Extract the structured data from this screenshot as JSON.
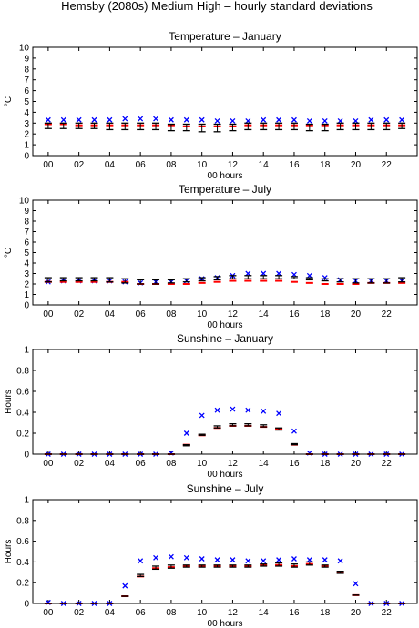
{
  "figure_title": "Hemsby (2080s) Medium High – hourly standard deviations",
  "colors": {
    "observed": "#0000ff",
    "model_mean": "#ff0000",
    "model_range": "#000000"
  },
  "chart_data": [
    {
      "type": "scatter",
      "title": "Temperature – January",
      "xlabel": "00 hours",
      "ylabel": "°C",
      "ylim": [
        0,
        10
      ],
      "yticks": [
        0,
        1,
        2,
        3,
        4,
        5,
        6,
        7,
        8,
        9,
        10
      ],
      "xticks": [
        "00",
        "02",
        "04",
        "06",
        "08",
        "10",
        "12",
        "14",
        "16",
        "18",
        "20",
        "22"
      ],
      "hours": [
        0,
        1,
        2,
        3,
        4,
        5,
        6,
        7,
        8,
        9,
        10,
        11,
        12,
        13,
        14,
        15,
        16,
        17,
        18,
        19,
        20,
        21,
        22,
        23
      ],
      "series": [
        {
          "marker": "x",
          "values": [
            3.3,
            3.3,
            3.3,
            3.3,
            3.3,
            3.4,
            3.4,
            3.4,
            3.3,
            3.3,
            3.3,
            3.2,
            3.2,
            3.2,
            3.3,
            3.3,
            3.3,
            3.2,
            3.2,
            3.2,
            3.2,
            3.3,
            3.3,
            3.3
          ]
        },
        {
          "marker": "dash",
          "values": [
            2.9,
            2.9,
            2.8,
            2.8,
            2.8,
            2.8,
            2.8,
            2.8,
            2.8,
            2.7,
            2.7,
            2.7,
            2.7,
            2.8,
            2.8,
            2.8,
            2.8,
            2.8,
            2.8,
            2.8,
            2.8,
            2.8,
            2.8,
            2.8
          ]
        },
        {
          "marker": "errorbar",
          "low": [
            2.5,
            2.5,
            2.5,
            2.5,
            2.4,
            2.4,
            2.4,
            2.4,
            2.3,
            2.3,
            2.2,
            2.2,
            2.3,
            2.4,
            2.4,
            2.4,
            2.4,
            2.3,
            2.3,
            2.4,
            2.4,
            2.4,
            2.4,
            2.5
          ],
          "high": [
            3.0,
            3.0,
            3.0,
            3.0,
            3.0,
            3.0,
            3.0,
            3.0,
            2.9,
            2.9,
            2.9,
            2.9,
            2.9,
            3.0,
            3.0,
            3.0,
            3.0,
            2.9,
            2.9,
            3.0,
            3.0,
            3.0,
            3.0,
            3.0
          ]
        }
      ]
    },
    {
      "type": "scatter",
      "title": "Temperature – July",
      "xlabel": "00 hours",
      "ylabel": "°C",
      "ylim": [
        0,
        10
      ],
      "yticks": [
        0,
        1,
        2,
        3,
        4,
        5,
        6,
        7,
        8,
        9,
        10
      ],
      "xticks": [
        "00",
        "02",
        "04",
        "06",
        "08",
        "10",
        "12",
        "14",
        "16",
        "18",
        "20",
        "22"
      ],
      "hours": [
        0,
        1,
        2,
        3,
        4,
        5,
        6,
        7,
        8,
        9,
        10,
        11,
        12,
        13,
        14,
        15,
        16,
        17,
        18,
        19,
        20,
        21,
        22,
        23
      ],
      "series": [
        {
          "marker": "x",
          "values": [
            2.2,
            2.3,
            2.3,
            2.3,
            2.3,
            2.2,
            2.1,
            2.2,
            2.2,
            2.3,
            2.5,
            2.6,
            2.8,
            3.0,
            3.0,
            3.0,
            2.9,
            2.8,
            2.6,
            2.4,
            2.3,
            2.3,
            2.3,
            2.3
          ]
        },
        {
          "marker": "dash",
          "values": [
            2.2,
            2.2,
            2.2,
            2.2,
            2.2,
            2.2,
            2.0,
            2.0,
            2.0,
            2.0,
            2.1,
            2.2,
            2.3,
            2.3,
            2.3,
            2.3,
            2.2,
            2.1,
            2.0,
            2.0,
            2.0,
            2.1,
            2.1,
            2.1
          ]
        },
        {
          "marker": "errorbar",
          "low": [
            2.2,
            2.3,
            2.3,
            2.3,
            2.2,
            2.1,
            2.0,
            2.0,
            2.1,
            2.2,
            2.3,
            2.4,
            2.5,
            2.5,
            2.5,
            2.5,
            2.5,
            2.4,
            2.3,
            2.2,
            2.1,
            2.1,
            2.1,
            2.2
          ],
          "high": [
            2.6,
            2.6,
            2.6,
            2.6,
            2.6,
            2.5,
            2.4,
            2.4,
            2.4,
            2.5,
            2.6,
            2.7,
            2.8,
            2.8,
            2.8,
            2.8,
            2.7,
            2.6,
            2.5,
            2.5,
            2.5,
            2.5,
            2.5,
            2.6
          ]
        }
      ]
    },
    {
      "type": "scatter",
      "title": "Sunshine – January",
      "xlabel": "00 hours",
      "ylabel": "Hours",
      "ylim": [
        0,
        1
      ],
      "yticks": [
        0,
        0.2,
        0.4,
        0.6,
        0.8,
        1
      ],
      "xticks": [
        "00",
        "02",
        "04",
        "06",
        "08",
        "10",
        "12",
        "14",
        "16",
        "18",
        "20",
        "22"
      ],
      "hours": [
        0,
        1,
        2,
        3,
        4,
        5,
        6,
        7,
        8,
        9,
        10,
        11,
        12,
        13,
        14,
        15,
        16,
        17,
        18,
        19,
        20,
        21,
        22,
        23
      ],
      "series": [
        {
          "marker": "x",
          "values": [
            0,
            0,
            0,
            0,
            0,
            0,
            0,
            0,
            0.01,
            0.2,
            0.37,
            0.42,
            0.43,
            0.42,
            0.41,
            0.39,
            0.22,
            0.01,
            0,
            0,
            0,
            0,
            0,
            0
          ]
        },
        {
          "marker": "dash",
          "values": [
            0,
            0,
            0,
            0,
            0,
            0,
            0,
            0,
            0,
            0.09,
            0.18,
            0.25,
            0.27,
            0.27,
            0.26,
            0.24,
            0.09,
            0,
            0,
            0,
            0,
            0,
            0,
            0
          ]
        },
        {
          "marker": "errorbar",
          "low": [
            0,
            0,
            0,
            0,
            0,
            0,
            0,
            0,
            0,
            0.08,
            0.18,
            0.25,
            0.27,
            0.27,
            0.26,
            0.23,
            0.09,
            0,
            0,
            0,
            0,
            0,
            0,
            0
          ],
          "high": [
            0,
            0,
            0,
            0,
            0,
            0,
            0,
            0,
            0,
            0.09,
            0.19,
            0.27,
            0.29,
            0.29,
            0.28,
            0.25,
            0.1,
            0,
            0,
            0,
            0,
            0,
            0,
            0
          ]
        }
      ]
    },
    {
      "type": "scatter",
      "title": "Sunshine – July",
      "xlabel": "00 hours",
      "ylabel": "Hours",
      "ylim": [
        0,
        1
      ],
      "yticks": [
        0,
        0.2,
        0.4,
        0.6,
        0.8,
        1
      ],
      "xticks": [
        "00",
        "02",
        "04",
        "06",
        "08",
        "10",
        "12",
        "14",
        "16",
        "18",
        "20",
        "22"
      ],
      "hours": [
        0,
        1,
        2,
        3,
        4,
        5,
        6,
        7,
        8,
        9,
        10,
        11,
        12,
        13,
        14,
        15,
        16,
        17,
        18,
        19,
        20,
        21,
        22,
        23
      ],
      "series": [
        {
          "marker": "x",
          "values": [
            0.01,
            0,
            0,
            0,
            0,
            0.17,
            0.41,
            0.44,
            0.45,
            0.44,
            0.43,
            0.42,
            0.42,
            0.41,
            0.41,
            0.42,
            0.43,
            0.42,
            0.42,
            0.41,
            0.19,
            0,
            0,
            0
          ]
        },
        {
          "marker": "dash",
          "values": [
            0,
            0,
            0,
            0,
            0,
            0.07,
            0.26,
            0.34,
            0.35,
            0.36,
            0.36,
            0.36,
            0.36,
            0.36,
            0.37,
            0.37,
            0.36,
            0.38,
            0.36,
            0.3,
            0.08,
            0,
            0,
            0
          ]
        },
        {
          "marker": "errorbar",
          "low": [
            0,
            0,
            0,
            0,
            0,
            0.07,
            0.26,
            0.33,
            0.34,
            0.35,
            0.35,
            0.35,
            0.35,
            0.35,
            0.36,
            0.36,
            0.35,
            0.37,
            0.35,
            0.29,
            0.08,
            0,
            0,
            0
          ],
          "high": [
            0,
            0,
            0,
            0,
            0,
            0.07,
            0.28,
            0.36,
            0.37,
            0.37,
            0.37,
            0.37,
            0.37,
            0.37,
            0.38,
            0.39,
            0.38,
            0.4,
            0.37,
            0.31,
            0.08,
            0,
            0,
            0
          ]
        }
      ]
    }
  ]
}
